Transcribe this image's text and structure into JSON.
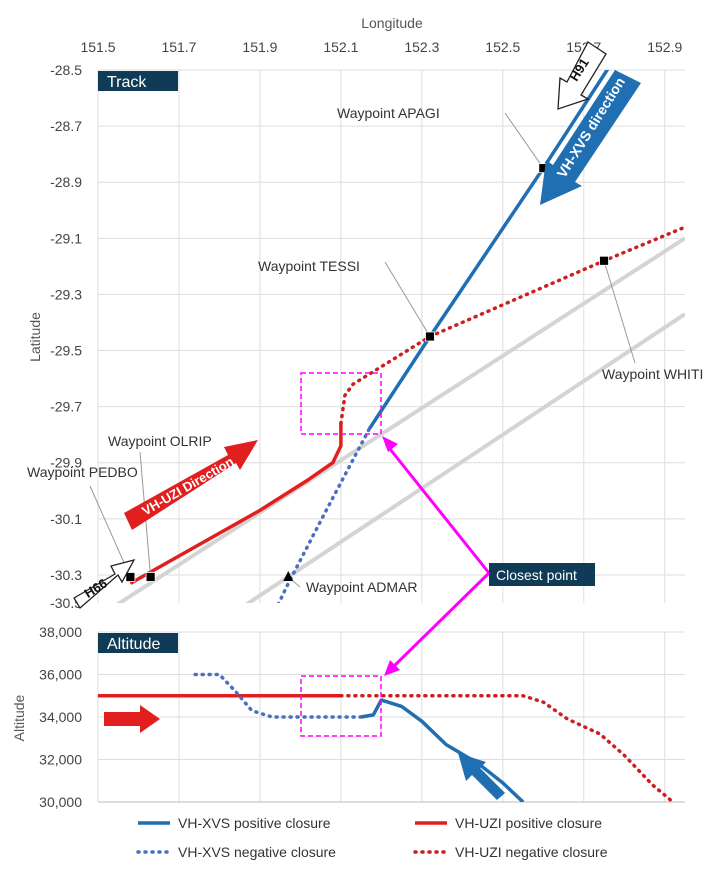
{
  "colors": {
    "xvs": "#1f6fb2",
    "xvs_neg": "#4a6fc1",
    "uzi": "#e21f1f",
    "uzi_neg": "#cc1f1f",
    "magenta": "#ff00ff",
    "panel_bg": "#0f3b57",
    "gray_line": "#d4d4d4"
  },
  "annotations": {
    "closest_point": "Closest point",
    "xvs_direction": "VH-XVS direction",
    "uzi_direction": "VH-UZI Direction",
    "h91": "H91",
    "h66": "H66"
  },
  "chart_data": [
    {
      "type": "line",
      "title": "Track",
      "xlabel": "Longitude",
      "ylabel": "Latitude",
      "xlim": [
        151.5,
        152.95
      ],
      "ylim": [
        -30.4,
        -28.5
      ],
      "xticks": [
        "151.5",
        "151.7",
        "151.9",
        "152.1",
        "152.3",
        "152.5",
        "152.7",
        "152.9"
      ],
      "yticks": [
        "-28.5",
        "-28.7",
        "-28.9",
        "-29.1",
        "-29.3",
        "-29.5",
        "-29.7",
        "-29.9",
        "-30.1",
        "-30.3",
        "-30.5"
      ],
      "grid": true,
      "series": [
        {
          "name": "VH-XVS positive closure",
          "style": "solid",
          "color": "#1f6fb2",
          "points": [
            [
              152.17,
              -29.78
            ],
            [
              152.32,
              -29.45
            ],
            [
              152.6,
              -28.85
            ],
            [
              152.78,
              -28.45
            ]
          ]
        },
        {
          "name": "VH-XVS negative closure",
          "style": "dotted",
          "color": "#4a6fc1",
          "points": [
            [
              151.93,
              -30.45
            ],
            [
              151.97,
              -30.33
            ],
            [
              152.06,
              -30.08
            ],
            [
              152.17,
              -29.78
            ]
          ]
        },
        {
          "name": "VH-UZI positive closure",
          "style": "solid",
          "color": "#e21f1f",
          "points": [
            [
              151.58,
              -30.33
            ],
            [
              151.9,
              -30.07
            ],
            [
              152.02,
              -29.96
            ],
            [
              152.08,
              -29.9
            ],
            [
              152.1,
              -29.84
            ],
            [
              152.1,
              -29.76
            ]
          ]
        },
        {
          "name": "VH-UZI negative closure",
          "style": "dotted",
          "color": "#cc1f1f",
          "points": [
            [
              152.1,
              -29.76
            ],
            [
              152.11,
              -29.66
            ],
            [
              152.13,
              -29.62
            ],
            [
              152.32,
              -29.45
            ],
            [
              152.75,
              -29.18
            ],
            [
              152.95,
              -29.06
            ]
          ]
        },
        {
          "name": "",
          "style": "gray",
          "color": "#d4d4d4",
          "points": [
            [
              151.5,
              -30.45
            ],
            [
              152.95,
              -29.1
            ]
          ]
        },
        {
          "name": "",
          "style": "gray",
          "color": "#d4d4d4",
          "points": [
            [
              151.82,
              -30.45
            ],
            [
              152.95,
              -29.37
            ]
          ]
        }
      ],
      "waypoints": [
        {
          "label": "Waypoint APAGI",
          "lon": 152.6,
          "lat": -28.85,
          "marker": "square"
        },
        {
          "label": "Waypoint TESSI",
          "lon": 152.32,
          "lat": -29.45,
          "marker": "square"
        },
        {
          "label": "Waypoint WHITI",
          "lon": 152.75,
          "lat": -29.18,
          "marker": "square"
        },
        {
          "label": "Waypoint OLRIP",
          "lon": 151.63,
          "lat": -30.4,
          "marker": "square"
        },
        {
          "label": "Waypoint PEDBO",
          "lon": 151.58,
          "lat": -30.33,
          "marker": "square"
        },
        {
          "label": "Waypoint ADMAR",
          "lon": 151.97,
          "lat": -30.33,
          "marker": "triangle"
        }
      ]
    },
    {
      "type": "line",
      "title": "Altitude",
      "ylabel": "Altitude",
      "xlim": [
        151.5,
        152.95
      ],
      "ylim": [
        30000,
        38000
      ],
      "yticks": [
        "38,000",
        "36,000",
        "34,000",
        "32,000",
        "30,000"
      ],
      "grid": true,
      "series": [
        {
          "name": "VH-UZI positive closure",
          "style": "solid",
          "color": "#e21f1f",
          "points": [
            [
              151.5,
              35000
            ],
            [
              152.1,
              35000
            ]
          ]
        },
        {
          "name": "VH-UZI negative closure",
          "style": "dotted",
          "color": "#cc1f1f",
          "points": [
            [
              152.1,
              35000
            ],
            [
              152.55,
              35000
            ],
            [
              152.6,
              34700
            ],
            [
              152.66,
              33900
            ],
            [
              152.74,
              33200
            ],
            [
              152.8,
              32200
            ],
            [
              152.87,
              30800
            ],
            [
              152.92,
              30000
            ]
          ]
        },
        {
          "name": "VH-XVS negative closure",
          "style": "dotted",
          "color": "#4a6fc1",
          "points": [
            [
              151.74,
              36000
            ],
            [
              151.8,
              36000
            ],
            [
              151.84,
              35200
            ],
            [
              151.88,
              34300
            ],
            [
              151.93,
              34000
            ],
            [
              152.15,
              34000
            ]
          ]
        },
        {
          "name": "VH-XVS positive closure",
          "style": "solid",
          "color": "#1f6fb2",
          "points": [
            [
              152.15,
              34000
            ],
            [
              152.18,
              34100
            ],
            [
              152.2,
              34800
            ],
            [
              152.25,
              34500
            ],
            [
              152.3,
              33800
            ],
            [
              152.36,
              32700
            ],
            [
              152.44,
              31800
            ],
            [
              152.5,
              30900
            ],
            [
              152.55,
              30000
            ]
          ]
        }
      ]
    }
  ],
  "legend": [
    {
      "label": "VH-XVS positive closure",
      "style": "solid",
      "color": "#1f6fb2"
    },
    {
      "label": "VH-UZI positive closure",
      "style": "solid",
      "color": "#e21f1f"
    },
    {
      "label": "VH-XVS negative closure",
      "style": "dotted",
      "color": "#4a6fc1"
    },
    {
      "label": "VH-UZI negative closure",
      "style": "dotted",
      "color": "#cc1f1f"
    }
  ]
}
